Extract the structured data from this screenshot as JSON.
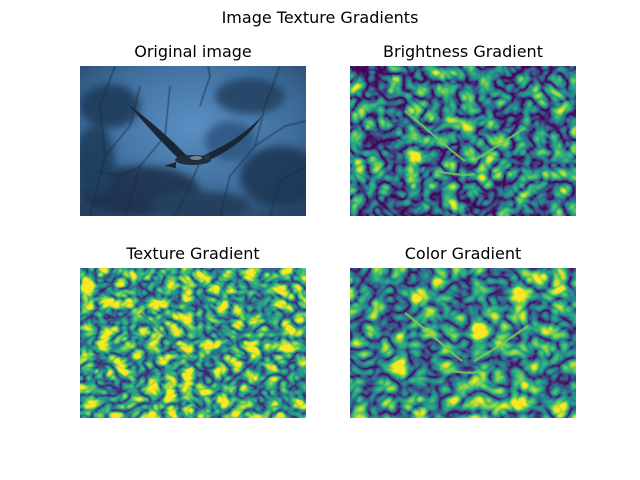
{
  "figure": {
    "suptitle": "Image Texture Gradients"
  },
  "chart_data": {
    "type": "image-grid",
    "layout": "2x2",
    "colormap": "viridis",
    "panels": [
      {
        "title": "Original image",
        "content": "photo of a bird of prey flying in front of blue-toned tree branches"
      },
      {
        "title": "Brightness Gradient",
        "content": "viridis heat map of brightness gradient"
      },
      {
        "title": "Texture Gradient",
        "content": "viridis heat map of texture gradient"
      },
      {
        "title": "Color Gradient",
        "content": "viridis heat map of color gradient"
      }
    ]
  },
  "colors": {
    "viridis_dark": "#440154",
    "viridis_blue": "#31688e",
    "viridis_teal": "#21908d",
    "viridis_green": "#35b779",
    "viridis_yellow": "#fde725",
    "photo_sky": "#3e6e9c",
    "photo_dark": "#1a2f48"
  }
}
